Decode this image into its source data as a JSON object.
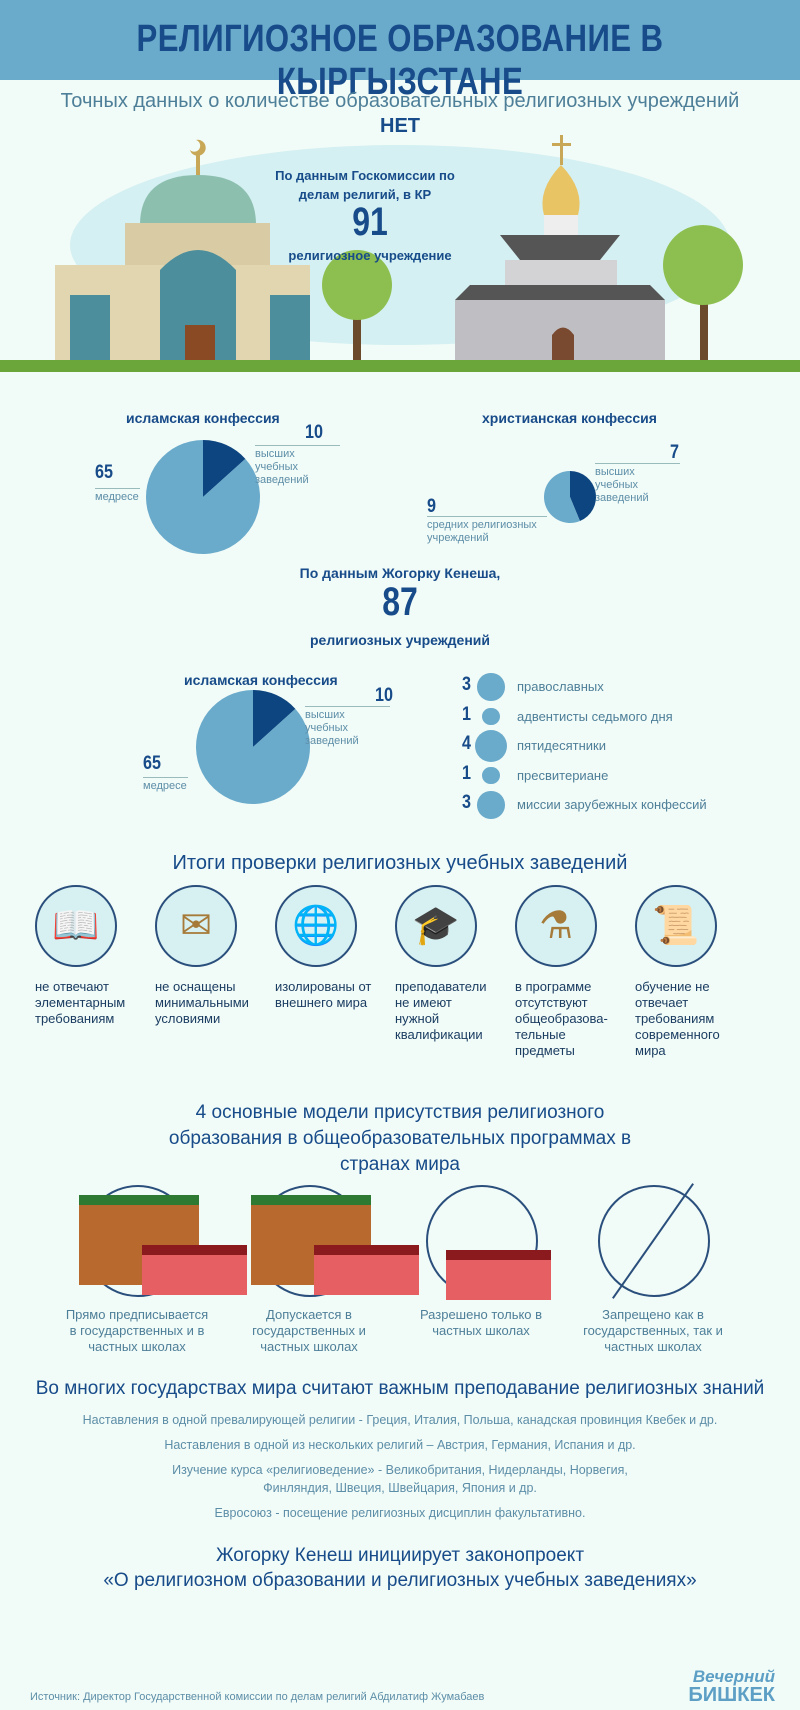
{
  "title": "РЕЛИГИОЗНОЕ ОБРАЗОВАНИЕ В КЫРГЫЗСТАНЕ",
  "intro": {
    "line": "Точных данных о количестве образовательных религиозных учреждений",
    "emphasis": "НЕТ"
  },
  "goskom": {
    "source": "По данным Госкомиссии по делам религий, в КР",
    "total": "91",
    "unit": "религиозное учреждение"
  },
  "kenesh": {
    "source": "По данным Жогорку Кенеша,",
    "total": "87",
    "unit": "религиозных учреждений"
  },
  "chart_data": [
    {
      "type": "pie",
      "title": "исламская конфессия",
      "slices": [
        {
          "label": "высших учебных заведений",
          "value": 10,
          "color": "#0d4580"
        },
        {
          "label": "медресе",
          "value": 65,
          "color": "#6aaacb"
        }
      ]
    },
    {
      "type": "pie",
      "title": "христианская конфессия",
      "slices": [
        {
          "label": "высших учебных заведений",
          "value": 7,
          "color": "#0d4580"
        },
        {
          "label": "средних религиозных учреждений",
          "value": 9,
          "color": "#6aaacb"
        }
      ]
    },
    {
      "type": "pie",
      "title": "исламская конфессия",
      "slices": [
        {
          "label": "высших учебных заведений",
          "value": 10,
          "color": "#0d4580"
        },
        {
          "label": "медресе",
          "value": 65,
          "color": "#6aaacb"
        }
      ]
    },
    {
      "type": "bubble",
      "items": [
        {
          "value": 3,
          "label": "православных"
        },
        {
          "value": 1,
          "label": "адвентисты седьмого дня"
        },
        {
          "value": 4,
          "label": "пятидесятники"
        },
        {
          "value": 1,
          "label": "пресвитериане"
        },
        {
          "value": 3,
          "label": "миссии зарубежных конфессий"
        }
      ]
    }
  ],
  "results": {
    "heading": "Итоги проверки религиозных учебных заведений",
    "items": [
      {
        "icon": "book-icon",
        "text": "не отвечают элементарным требованиям"
      },
      {
        "icon": "blackboard-icon",
        "text": "не оснащены минимальными условиями"
      },
      {
        "icon": "globe-icon",
        "text": "изолированы от внешнего мира"
      },
      {
        "icon": "graduation-cap-icon",
        "text": "преподаватели не имеют нужной квалификации"
      },
      {
        "icon": "flask-icon",
        "text": "в программе отсутствуют общеобразова-тельные предметы"
      },
      {
        "icon": "scroll-icon",
        "text": "обучение не отвечает требованиям современного мира"
      }
    ]
  },
  "models": {
    "heading": "4 основные модели присутствия религиозного образования в общеобразовательных программах в странах мира",
    "items": [
      {
        "text": "Прямо предписывается в государственных и в частных школах"
      },
      {
        "text": "Допускается в государственных и частных школах"
      },
      {
        "text": "Разрешено только в частных школах"
      },
      {
        "text": "Запрещено как в государственных, так и частных школах"
      }
    ]
  },
  "world": {
    "heading": "Во многих государствах мира считают важным преподавание религиозных знаний",
    "lines": [
      "Наставления в одной превалирующей религии - Греция, Италия, Польша, канадская провинция Квебек и др.",
      "Наставления в одной из нескольких религий – Австрия, Германия, Испания и др.",
      "Изучение курса «религиоведение» - Великобритания, Нидерланды, Норвегия,",
      "Финляндия, Швеция, Швейцария, Япония и др.",
      "Евросоюз -  посещение религиозных дисциплин  факультативно."
    ]
  },
  "bill": {
    "line1": "Жогорку Кенеш инициирует законопроект",
    "line2": "«О религиозном образовании и религиозных учебных заведениях»"
  },
  "footer": {
    "source": "Источник: Директор Государственной комиссии по делам религий Абдилатиф Жумабаев",
    "logo1": "Вечерний",
    "logo2": "БИШКЕК"
  }
}
